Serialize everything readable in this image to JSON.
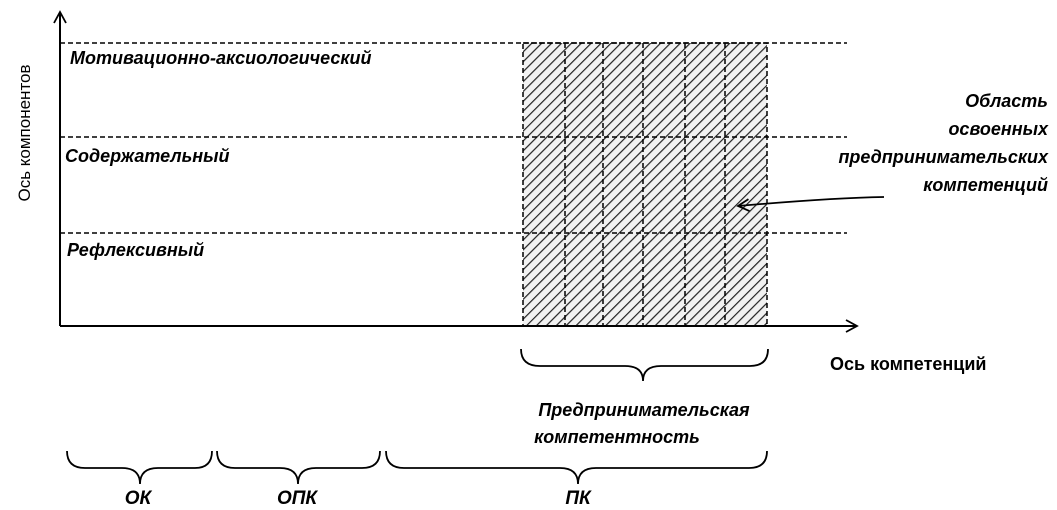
{
  "axes": {
    "y_label": "Ось компонентов",
    "x_label": "Ось компетенций"
  },
  "components": [
    {
      "label": "Мотивационно-аксиологический"
    },
    {
      "label": "Содержательный"
    },
    {
      "label": "Рефлексивный"
    }
  ],
  "mastered_area": {
    "label_lines": [
      "Область",
      "освоенных",
      "предпринимательских",
      "компетенций"
    ]
  },
  "entrepreneurial_competence": {
    "label_lines": [
      "Предпринимательская",
      "компетентность"
    ]
  },
  "competency_groups": [
    {
      "label": "ОК"
    },
    {
      "label": "ОПК"
    },
    {
      "label": "ПК"
    }
  ]
}
